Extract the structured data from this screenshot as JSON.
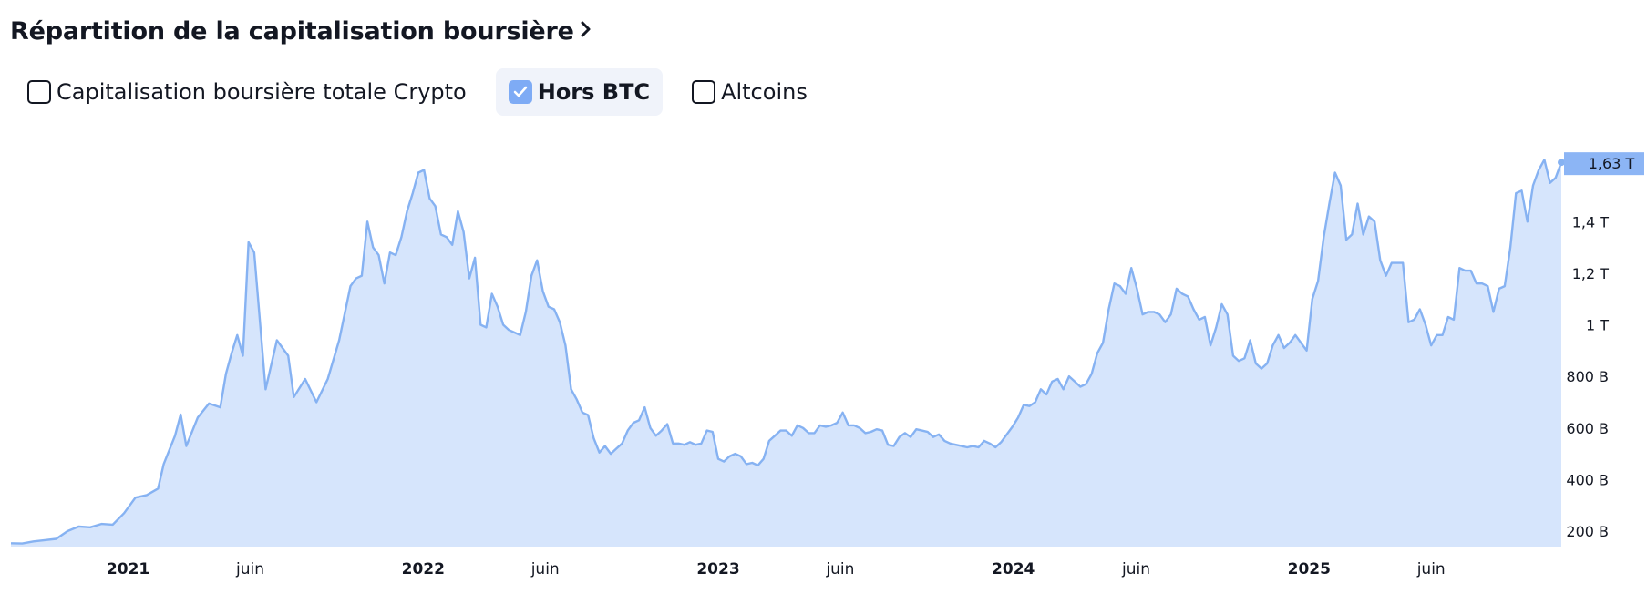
{
  "header": {
    "title": "Répartition de la capitalisation boursière"
  },
  "toggles": [
    {
      "label": "Capitalisation boursière totale Crypto",
      "checked": false
    },
    {
      "label": "Hors BTC",
      "checked": true
    },
    {
      "label": "Altcoins",
      "checked": false
    }
  ],
  "colors": {
    "line": "#86b2f2",
    "fill": "#d6e5fc",
    "badge": "#8cb5f5",
    "checkbox": "#7eabf5"
  },
  "icons": {
    "title_chevron": "chevron-right-icon",
    "check": "check-icon"
  },
  "chart_data": {
    "type": "area",
    "title": "",
    "xlabel": "",
    "ylabel": "",
    "ylim": [
      140,
      1680
    ],
    "grid": false,
    "y_axis_side": "right",
    "y_ticks": [
      {
        "value": 200,
        "label": "200 B"
      },
      {
        "value": 400,
        "label": "400 B"
      },
      {
        "value": 600,
        "label": "600 B"
      },
      {
        "value": 800,
        "label": "800 B"
      },
      {
        "value": 1000,
        "label": "1 T"
      },
      {
        "value": 1200,
        "label": "1,2 T"
      },
      {
        "value": 1400,
        "label": "1,4 T"
      }
    ],
    "x_ticks": [
      {
        "date": "2021-01-01",
        "label": "2021",
        "major": true
      },
      {
        "date": "2021-06-01",
        "label": "juin",
        "major": false
      },
      {
        "date": "2022-01-01",
        "label": "2022",
        "major": true
      },
      {
        "date": "2022-06-01",
        "label": "juin",
        "major": false
      },
      {
        "date": "2023-01-01",
        "label": "2023",
        "major": true
      },
      {
        "date": "2023-06-01",
        "label": "juin",
        "major": false
      },
      {
        "date": "2024-01-01",
        "label": "2024",
        "major": true
      },
      {
        "date": "2024-06-01",
        "label": "juin",
        "major": false
      },
      {
        "date": "2025-01-01",
        "label": "2025",
        "major": true
      },
      {
        "date": "2025-06-01",
        "label": "juin",
        "major": false
      }
    ],
    "last_value_label": "1,63 T",
    "series": [
      {
        "values": [
          [
            "2020-08-09",
            153
          ],
          [
            "2020-08-23",
            152
          ],
          [
            "2020-09-06",
            160
          ],
          [
            "2020-09-20",
            165
          ],
          [
            "2020-10-04",
            170
          ],
          [
            "2020-10-18",
            200
          ],
          [
            "2020-11-01",
            218
          ],
          [
            "2020-11-15",
            215
          ],
          [
            "2020-11-29",
            228
          ],
          [
            "2020-12-13",
            225
          ],
          [
            "2020-12-27",
            270
          ],
          [
            "2021-01-10",
            330
          ],
          [
            "2021-01-24",
            340
          ],
          [
            "2021-02-07",
            365
          ],
          [
            "2021-02-14",
            460
          ],
          [
            "2021-02-28",
            570
          ],
          [
            "2021-03-07",
            652
          ],
          [
            "2021-03-14",
            530
          ],
          [
            "2021-03-28",
            640
          ],
          [
            "2021-04-11",
            695
          ],
          [
            "2021-04-25",
            680
          ],
          [
            "2021-05-02",
            810
          ],
          [
            "2021-05-09",
            890
          ],
          [
            "2021-05-16",
            960
          ],
          [
            "2021-05-23",
            880
          ],
          [
            "2021-05-30",
            1320
          ],
          [
            "2021-06-06",
            1280
          ],
          [
            "2021-06-20",
            750
          ],
          [
            "2021-07-04",
            940
          ],
          [
            "2021-07-18",
            880
          ],
          [
            "2021-07-25",
            720
          ],
          [
            "2021-08-08",
            790
          ],
          [
            "2021-08-22",
            700
          ],
          [
            "2021-09-05",
            790
          ],
          [
            "2021-09-19",
            940
          ],
          [
            "2021-10-03",
            1150
          ],
          [
            "2021-10-10",
            1180
          ],
          [
            "2021-10-17",
            1190
          ],
          [
            "2021-10-24",
            1400
          ],
          [
            "2021-10-31",
            1300
          ],
          [
            "2021-11-07",
            1270
          ],
          [
            "2021-11-14",
            1160
          ],
          [
            "2021-11-21",
            1280
          ],
          [
            "2021-11-28",
            1270
          ],
          [
            "2021-12-05",
            1340
          ],
          [
            "2021-12-12",
            1440
          ],
          [
            "2021-12-19",
            1510
          ],
          [
            "2021-12-26",
            1590
          ],
          [
            "2022-01-02",
            1600
          ],
          [
            "2022-01-09",
            1490
          ],
          [
            "2022-01-16",
            1460
          ],
          [
            "2022-01-23",
            1350
          ],
          [
            "2022-01-30",
            1340
          ],
          [
            "2022-02-06",
            1310
          ],
          [
            "2022-02-13",
            1440
          ],
          [
            "2022-02-20",
            1360
          ],
          [
            "2022-02-27",
            1180
          ],
          [
            "2022-03-06",
            1260
          ],
          [
            "2022-03-13",
            1000
          ],
          [
            "2022-03-20",
            990
          ],
          [
            "2022-03-27",
            1120
          ],
          [
            "2022-04-03",
            1070
          ],
          [
            "2022-04-10",
            1000
          ],
          [
            "2022-04-17",
            980
          ],
          [
            "2022-04-24",
            970
          ],
          [
            "2022-05-01",
            960
          ],
          [
            "2022-05-08",
            1050
          ],
          [
            "2022-05-15",
            1190
          ],
          [
            "2022-05-22",
            1250
          ],
          [
            "2022-05-29",
            1130
          ],
          [
            "2022-06-05",
            1070
          ],
          [
            "2022-06-12",
            1060
          ],
          [
            "2022-06-19",
            1010
          ],
          [
            "2022-06-26",
            920
          ],
          [
            "2022-07-03",
            750
          ],
          [
            "2022-07-10",
            710
          ],
          [
            "2022-07-17",
            660
          ],
          [
            "2022-07-24",
            650
          ],
          [
            "2022-07-31",
            560
          ],
          [
            "2022-08-07",
            505
          ],
          [
            "2022-08-14",
            530
          ],
          [
            "2022-08-21",
            500
          ],
          [
            "2022-08-28",
            520
          ],
          [
            "2022-09-04",
            540
          ],
          [
            "2022-09-11",
            590
          ],
          [
            "2022-09-18",
            620
          ],
          [
            "2022-09-25",
            630
          ],
          [
            "2022-10-02",
            680
          ],
          [
            "2022-10-09",
            600
          ],
          [
            "2022-10-16",
            570
          ],
          [
            "2022-10-23",
            590
          ],
          [
            "2022-10-30",
            615
          ],
          [
            "2022-11-06",
            540
          ],
          [
            "2022-11-13",
            540
          ],
          [
            "2022-11-20",
            535
          ],
          [
            "2022-11-27",
            545
          ],
          [
            "2022-12-04",
            535
          ],
          [
            "2022-12-11",
            540
          ],
          [
            "2022-12-18",
            590
          ],
          [
            "2022-12-25",
            585
          ],
          [
            "2023-01-01",
            480
          ],
          [
            "2023-01-08",
            470
          ],
          [
            "2023-01-15",
            490
          ],
          [
            "2023-01-22",
            500
          ],
          [
            "2023-01-29",
            490
          ],
          [
            "2023-02-05",
            460
          ],
          [
            "2023-02-12",
            465
          ],
          [
            "2023-02-19",
            455
          ],
          [
            "2023-02-26",
            480
          ],
          [
            "2023-03-05",
            550
          ],
          [
            "2023-03-12",
            570
          ],
          [
            "2023-03-19",
            590
          ],
          [
            "2023-03-26",
            590
          ],
          [
            "2023-04-02",
            570
          ],
          [
            "2023-04-09",
            610
          ],
          [
            "2023-04-16",
            600
          ],
          [
            "2023-04-23",
            580
          ],
          [
            "2023-04-30",
            580
          ],
          [
            "2023-05-07",
            610
          ],
          [
            "2023-05-14",
            605
          ],
          [
            "2023-05-21",
            610
          ],
          [
            "2023-05-28",
            620
          ],
          [
            "2023-06-04",
            660
          ],
          [
            "2023-06-11",
            610
          ],
          [
            "2023-06-18",
            610
          ],
          [
            "2023-06-25",
            600
          ],
          [
            "2023-07-02",
            580
          ],
          [
            "2023-07-09",
            585
          ],
          [
            "2023-07-16",
            595
          ],
          [
            "2023-07-23",
            590
          ],
          [
            "2023-07-30",
            535
          ],
          [
            "2023-08-06",
            530
          ],
          [
            "2023-08-13",
            565
          ],
          [
            "2023-08-20",
            580
          ],
          [
            "2023-08-27",
            565
          ],
          [
            "2023-09-03",
            595
          ],
          [
            "2023-09-10",
            590
          ],
          [
            "2023-09-17",
            585
          ],
          [
            "2023-09-24",
            565
          ],
          [
            "2023-10-01",
            575
          ],
          [
            "2023-10-08",
            550
          ],
          [
            "2023-10-15",
            540
          ],
          [
            "2023-10-22",
            535
          ],
          [
            "2023-10-29",
            530
          ],
          [
            "2023-11-05",
            525
          ],
          [
            "2023-11-12",
            530
          ],
          [
            "2023-11-19",
            525
          ],
          [
            "2023-11-26",
            550
          ],
          [
            "2023-12-03",
            540
          ],
          [
            "2023-12-10",
            525
          ],
          [
            "2023-12-17",
            545
          ],
          [
            "2023-12-24",
            575
          ],
          [
            "2023-12-31",
            605
          ],
          [
            "2024-01-07",
            640
          ],
          [
            "2024-01-14",
            690
          ],
          [
            "2024-01-21",
            685
          ],
          [
            "2024-01-28",
            700
          ],
          [
            "2024-02-04",
            750
          ],
          [
            "2024-02-11",
            730
          ],
          [
            "2024-02-18",
            780
          ],
          [
            "2024-02-25",
            790
          ],
          [
            "2024-03-03",
            750
          ],
          [
            "2024-03-10",
            800
          ],
          [
            "2024-03-17",
            780
          ],
          [
            "2024-03-24",
            760
          ],
          [
            "2024-03-31",
            770
          ],
          [
            "2024-04-07",
            810
          ],
          [
            "2024-04-14",
            890
          ],
          [
            "2024-04-21",
            930
          ],
          [
            "2024-04-28",
            1060
          ],
          [
            "2024-05-05",
            1160
          ],
          [
            "2024-05-12",
            1150
          ],
          [
            "2024-05-19",
            1120
          ],
          [
            "2024-05-26",
            1220
          ],
          [
            "2024-06-02",
            1140
          ],
          [
            "2024-06-09",
            1040
          ],
          [
            "2024-06-16",
            1050
          ],
          [
            "2024-06-23",
            1050
          ],
          [
            "2024-06-30",
            1040
          ],
          [
            "2024-07-07",
            1010
          ],
          [
            "2024-07-14",
            1040
          ],
          [
            "2024-07-21",
            1140
          ],
          [
            "2024-07-28",
            1120
          ],
          [
            "2024-08-04",
            1110
          ],
          [
            "2024-08-11",
            1060
          ],
          [
            "2024-08-18",
            1020
          ],
          [
            "2024-08-25",
            1030
          ],
          [
            "2024-09-01",
            920
          ],
          [
            "2024-09-08",
            990
          ],
          [
            "2024-09-15",
            1080
          ],
          [
            "2024-09-22",
            1040
          ],
          [
            "2024-09-29",
            880
          ],
          [
            "2024-10-06",
            860
          ],
          [
            "2024-10-13",
            870
          ],
          [
            "2024-10-20",
            940
          ],
          [
            "2024-10-27",
            850
          ],
          [
            "2024-11-03",
            830
          ],
          [
            "2024-11-10",
            850
          ],
          [
            "2024-11-17",
            920
          ],
          [
            "2024-11-24",
            960
          ],
          [
            "2024-12-01",
            910
          ],
          [
            "2024-12-08",
            930
          ],
          [
            "2024-12-15",
            960
          ],
          [
            "2024-12-22",
            930
          ],
          [
            "2024-12-29",
            900
          ],
          [
            "2025-01-05",
            1100
          ],
          [
            "2025-01-12",
            1170
          ],
          [
            "2025-01-19",
            1340
          ],
          [
            "2025-01-26",
            1470
          ],
          [
            "2025-02-02",
            1590
          ],
          [
            "2025-02-09",
            1540
          ],
          [
            "2025-02-16",
            1330
          ],
          [
            "2025-02-23",
            1350
          ],
          [
            "2025-03-02",
            1470
          ],
          [
            "2025-03-09",
            1350
          ],
          [
            "2025-03-16",
            1420
          ],
          [
            "2025-03-23",
            1400
          ],
          [
            "2025-03-30",
            1250
          ],
          [
            "2025-04-06",
            1190
          ],
          [
            "2025-04-13",
            1240
          ],
          [
            "2025-04-20",
            1240
          ],
          [
            "2025-04-27",
            1240
          ],
          [
            "2025-05-04",
            1010
          ],
          [
            "2025-05-11",
            1020
          ],
          [
            "2025-05-18",
            1060
          ],
          [
            "2025-05-25",
            1000
          ],
          [
            "2025-06-01",
            920
          ],
          [
            "2025-06-08",
            960
          ],
          [
            "2025-06-15",
            960
          ],
          [
            "2025-06-22",
            1030
          ],
          [
            "2025-06-29",
            1020
          ],
          [
            "2025-07-06",
            1220
          ],
          [
            "2025-07-13",
            1210
          ],
          [
            "2025-07-20",
            1210
          ],
          [
            "2025-07-27",
            1160
          ],
          [
            "2025-08-03",
            1160
          ],
          [
            "2025-08-10",
            1150
          ],
          [
            "2025-08-17",
            1050
          ],
          [
            "2025-08-24",
            1140
          ],
          [
            "2025-08-31",
            1150
          ],
          [
            "2025-09-07",
            1300
          ],
          [
            "2025-09-14",
            1510
          ],
          [
            "2025-09-21",
            1520
          ],
          [
            "2025-09-28",
            1400
          ],
          [
            "2025-10-05",
            1540
          ],
          [
            "2025-10-12",
            1600
          ],
          [
            "2025-10-19",
            1640
          ],
          [
            "2025-10-26",
            1550
          ],
          [
            "2025-11-02",
            1570
          ],
          [
            "2025-11-09",
            1630
          ]
        ]
      }
    ]
  }
}
